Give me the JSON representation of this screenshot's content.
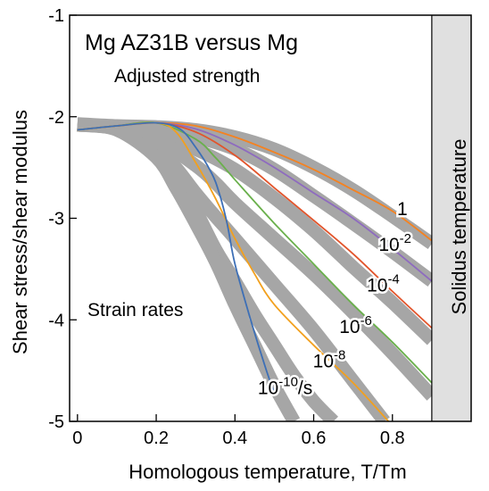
{
  "chart_data": {
    "type": "line",
    "title": "Mg AZ31B versus Mg",
    "subtitle": "Adjusted strength",
    "xlabel": "Homologous temperature, T/Tm",
    "ylabel": "Shear stress/shear modulus",
    "xlim": [
      -0.02,
      1.0
    ],
    "ylim": [
      -5,
      -1
    ],
    "xticks": [
      0,
      0.2,
      0.4,
      0.6,
      0.8
    ],
    "xtick_labels": [
      "0",
      "0.2",
      "0.4",
      "0.6",
      "0.8"
    ],
    "yticks": [
      -5,
      -4,
      -3,
      -2,
      -1
    ],
    "ytick_labels": [
      "-5",
      "-4",
      "-3",
      "-2",
      "-1"
    ],
    "grid": false,
    "annotation_strain_rates": "Strain rates",
    "solidus": {
      "x_start": 0.9,
      "label": "Solidus temperature",
      "color": "#e0e0e0"
    },
    "band_color": "#a6a6a6",
    "bands": [
      {
        "x": [
          0.0,
          0.1,
          0.2,
          0.3,
          0.4,
          0.5,
          0.6,
          0.7,
          0.8,
          0.9
        ],
        "y": [
          -2.07,
          -2.09,
          -2.1,
          -2.13,
          -2.2,
          -2.32,
          -2.5,
          -2.72,
          -2.98,
          -3.25
        ]
      },
      {
        "x": [
          0.0,
          0.1,
          0.2,
          0.3,
          0.4,
          0.5,
          0.6,
          0.7,
          0.8,
          0.9
        ],
        "y": [
          -2.08,
          -2.1,
          -2.13,
          -2.2,
          -2.32,
          -2.52,
          -2.78,
          -3.05,
          -3.33,
          -3.62
        ]
      },
      {
        "x": [
          0.0,
          0.1,
          0.2,
          0.3,
          0.4,
          0.5,
          0.6,
          0.7,
          0.8,
          0.9
        ],
        "y": [
          -2.08,
          -2.11,
          -2.18,
          -2.32,
          -2.52,
          -2.8,
          -3.12,
          -3.48,
          -3.83,
          -4.2
        ]
      },
      {
        "x": [
          0.0,
          0.1,
          0.2,
          0.3,
          0.35,
          0.4,
          0.5,
          0.6,
          0.7,
          0.8,
          0.9
        ],
        "y": [
          -2.08,
          -2.11,
          -2.22,
          -2.48,
          -2.65,
          -2.85,
          -3.2,
          -3.55,
          -3.93,
          -4.33,
          -4.75
        ]
      },
      {
        "x": [
          0.0,
          0.1,
          0.2,
          0.25,
          0.3,
          0.35,
          0.4,
          0.5,
          0.6,
          0.7,
          0.78
        ],
        "y": [
          -2.08,
          -2.12,
          -2.3,
          -2.5,
          -2.75,
          -2.98,
          -3.2,
          -3.65,
          -4.1,
          -4.6,
          -5.0
        ]
      },
      {
        "x": [
          0.0,
          0.1,
          0.2,
          0.25,
          0.3,
          0.35,
          0.4,
          0.45,
          0.5,
          0.55,
          0.6,
          0.65
        ],
        "y": [
          -2.08,
          -2.12,
          -2.35,
          -2.6,
          -2.92,
          -3.3,
          -3.62,
          -3.95,
          -4.25,
          -4.55,
          -4.8,
          -5.0
        ]
      },
      {
        "x": [
          0.0,
          0.1,
          0.2,
          0.25,
          0.3,
          0.35,
          0.4,
          0.45,
          0.5,
          0.55
        ],
        "y": [
          -2.08,
          -2.13,
          -2.4,
          -2.7,
          -3.05,
          -3.42,
          -3.85,
          -4.25,
          -4.65,
          -5.0
        ]
      }
    ],
    "series": [
      {
        "color": "#f58220",
        "x": [
          0.0,
          0.1,
          0.2,
          0.3,
          0.4,
          0.5,
          0.6,
          0.7,
          0.8,
          0.9
        ],
        "y": [
          -2.13,
          -2.09,
          -2.06,
          -2.09,
          -2.2,
          -2.35,
          -2.52,
          -2.72,
          -2.93,
          -3.22
        ]
      },
      {
        "color": "#8e6bbf",
        "x": [
          0.0,
          0.1,
          0.2,
          0.3,
          0.4,
          0.5,
          0.6,
          0.7,
          0.8,
          0.9
        ],
        "y": [
          -2.13,
          -2.09,
          -2.06,
          -2.12,
          -2.28,
          -2.5,
          -2.75,
          -3.0,
          -3.3,
          -3.62
        ]
      },
      {
        "color": "#e2542b",
        "x": [
          0.0,
          0.1,
          0.2,
          0.3,
          0.4,
          0.5,
          0.6,
          0.7,
          0.8,
          0.9
        ],
        "y": [
          -2.13,
          -2.09,
          -2.06,
          -2.15,
          -2.38,
          -2.7,
          -3.02,
          -3.35,
          -3.72,
          -4.08
        ]
      },
      {
        "color": "#6ab04c",
        "x": [
          0.0,
          0.1,
          0.2,
          0.3,
          0.35,
          0.4,
          0.5,
          0.6,
          0.7,
          0.8,
          0.9
        ],
        "y": [
          -2.13,
          -2.09,
          -2.06,
          -2.22,
          -2.4,
          -2.62,
          -3.05,
          -3.45,
          -3.85,
          -4.22,
          -4.62
        ]
      },
      {
        "color": "#f2a01e",
        "x": [
          0.0,
          0.1,
          0.2,
          0.25,
          0.3,
          0.35,
          0.4,
          0.45,
          0.5,
          0.6,
          0.7,
          0.79
        ],
        "y": [
          -2.13,
          -2.09,
          -2.06,
          -2.15,
          -2.45,
          -2.8,
          -3.2,
          -3.55,
          -3.85,
          -4.25,
          -4.62,
          -5.0
        ]
      },
      {
        "color": "#3d6fb6",
        "x": [
          0.0,
          0.1,
          0.2,
          0.26,
          0.3,
          0.34,
          0.36,
          0.38,
          0.4,
          0.44,
          0.48,
          0.5
        ],
        "y": [
          -2.13,
          -2.09,
          -2.06,
          -2.12,
          -2.3,
          -2.55,
          -2.75,
          -3.05,
          -3.45,
          -4.0,
          -4.5,
          -4.72
        ]
      }
    ],
    "curve_labels": [
      {
        "base": "1",
        "exp": "",
        "suffix": "",
        "x": 0.812,
        "y": -2.97
      },
      {
        "base": "10",
        "exp": "-2",
        "suffix": "",
        "x": 0.765,
        "y": -3.32
      },
      {
        "base": "10",
        "exp": "-4",
        "suffix": "",
        "x": 0.735,
        "y": -3.72
      },
      {
        "base": "10",
        "exp": "-6",
        "suffix": "",
        "x": 0.665,
        "y": -4.13
      },
      {
        "base": "10",
        "exp": "-8",
        "suffix": "",
        "x": 0.598,
        "y": -4.47
      },
      {
        "base": "10",
        "exp": "-10",
        "suffix": "/s",
        "x": 0.458,
        "y": -4.73
      }
    ]
  }
}
